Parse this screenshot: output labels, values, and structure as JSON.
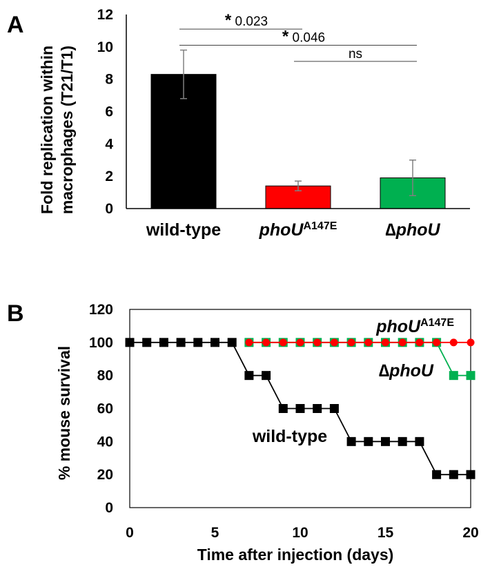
{
  "chart_data": [
    {
      "panel": "A",
      "type": "bar",
      "ylabel_lines": [
        "Fold replication within",
        "macrophages (T21/T1)"
      ],
      "ylim": [
        0,
        12
      ],
      "yticks": [
        0,
        2,
        4,
        6,
        8,
        10,
        12
      ],
      "categories": [
        {
          "name": "wild-type",
          "italic": "",
          "sup": "",
          "plain": "wild-type"
        },
        {
          "name": "phoUA147E",
          "italic": "phoU",
          "sup": "A147E",
          "plain": ""
        },
        {
          "name": "ΔphoU",
          "italic": "∆phoU",
          "sup": "",
          "plain": ""
        }
      ],
      "values": [
        8.3,
        1.4,
        1.9
      ],
      "errors": [
        1.5,
        0.3,
        1.1
      ],
      "colors": [
        "#000000",
        "#ff0000",
        "#00b050"
      ],
      "comparisons": [
        {
          "from": 0,
          "to": 1,
          "star": "*",
          "label": "0.023",
          "y": 11.1
        },
        {
          "from": 0,
          "to": 2,
          "star": "*",
          "label": "0.046",
          "y": 10.1
        },
        {
          "from": 1,
          "to": 2,
          "star": "",
          "label": "ns",
          "y": 9.1
        }
      ]
    },
    {
      "panel": "B",
      "type": "line",
      "xlabel": "Time after injection (days)",
      "ylabel": "% mouse survival",
      "xlim": [
        0,
        20
      ],
      "ylim": [
        0,
        120
      ],
      "xticks": [
        0,
        5,
        10,
        15,
        20
      ],
      "yticks": [
        0,
        20,
        40,
        60,
        80,
        100,
        120
      ],
      "series": [
        {
          "name": "phoUA147E",
          "label_italic": "phoU",
          "label_sup": "A147E",
          "color": "#ff0000",
          "marker": "circle",
          "x": [
            7,
            8,
            9,
            10,
            11,
            12,
            13,
            14,
            15,
            16,
            17,
            18,
            19,
            20
          ],
          "y": [
            100,
            100,
            100,
            100,
            100,
            100,
            100,
            100,
            100,
            100,
            100,
            100,
            100,
            100
          ]
        },
        {
          "name": "ΔphoU",
          "label_italic": "∆phoU",
          "label_sup": "",
          "color": "#00b050",
          "marker": "square",
          "x": [
            7,
            8,
            9,
            10,
            11,
            12,
            13,
            14,
            15,
            16,
            17,
            18,
            19,
            20
          ],
          "y": [
            100,
            100,
            100,
            100,
            100,
            100,
            100,
            100,
            100,
            100,
            100,
            100,
            80,
            80
          ]
        },
        {
          "name": "wild-type",
          "label_italic": "",
          "label_sup": "",
          "label_plain": "wild-type",
          "color": "#000000",
          "marker": "square",
          "x": [
            0,
            1,
            2,
            3,
            4,
            5,
            6,
            7,
            8,
            9,
            10,
            11,
            12,
            13,
            14,
            15,
            16,
            17,
            18,
            19,
            20
          ],
          "y": [
            100,
            100,
            100,
            100,
            100,
            100,
            100,
            80,
            80,
            60,
            60,
            60,
            60,
            40,
            40,
            40,
            40,
            40,
            20,
            20,
            20
          ]
        }
      ]
    }
  ]
}
